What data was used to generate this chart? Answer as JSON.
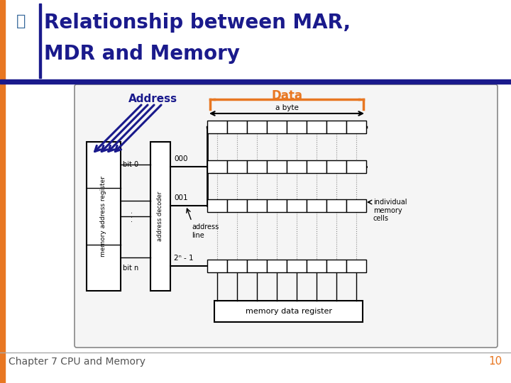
{
  "title_line1": "Relationship between MAR,",
  "title_line2": "MDR and Memory",
  "title_color": "#1a1a8c",
  "title_fontsize": 20,
  "footer_text": "Chapter 7 CPU and Memory",
  "footer_page": "10",
  "footer_fontsize": 10,
  "footer_page_color": "#e87722",
  "bg_color": "#ffffff",
  "left_bar_color": "#e87722",
  "top_bar_color": "#1a1a8c",
  "address_label": "Address",
  "data_label": "Data",
  "address_label_color": "#1a1a8c",
  "data_label_color": "#e87722",
  "mar_label": "memory address register",
  "mdr_label": "memory data register",
  "decoder_label": "address decoder",
  "bit0_label": "bit 0",
  "bitn_label": "bit n",
  "addr000_label": "000",
  "addr001_label": "001",
  "addr2n_label": "2ⁿ - 1",
  "abyte_label": "a byte",
  "addrline_label": "address\nline",
  "indiv_label": "individual\nmemory\ncells"
}
